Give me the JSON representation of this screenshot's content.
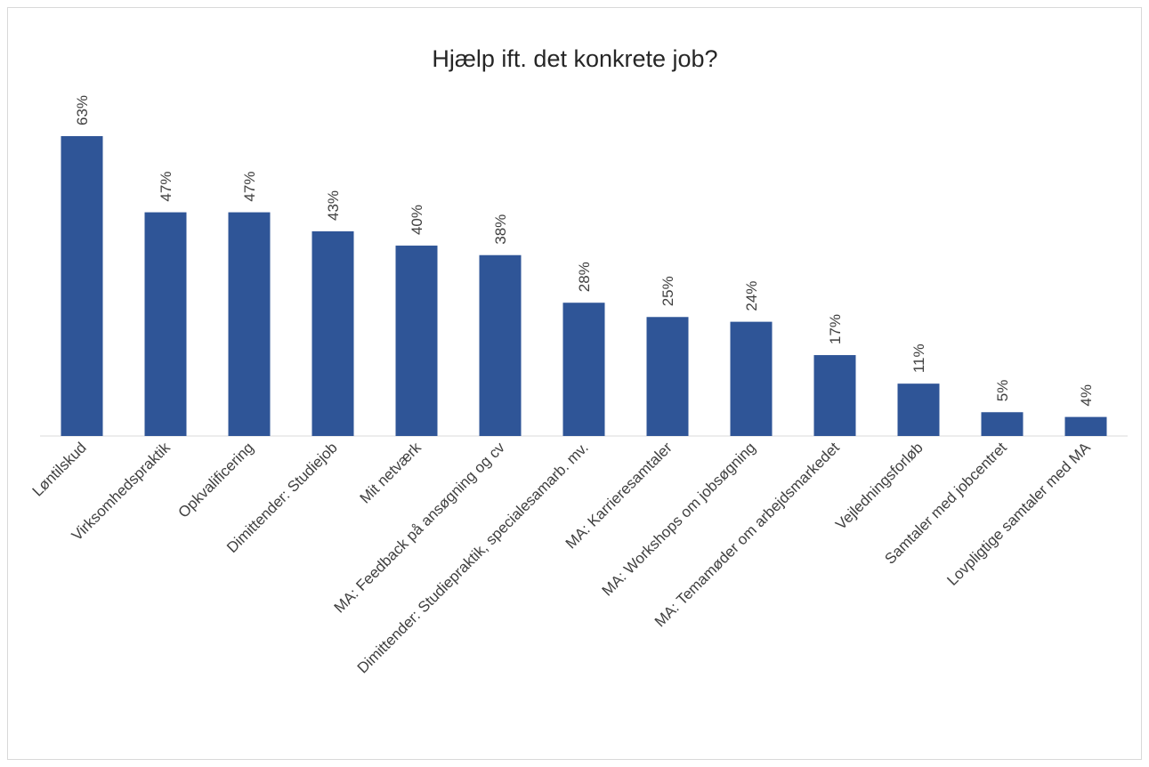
{
  "chart_data": {
    "type": "bar",
    "title": "Hjælp ift. det konkrete job?",
    "categories": [
      "Løntilskud",
      "Virksomhedspraktik",
      "Opkvalificering",
      "Dimittender: Studiejob",
      "Mit netværk",
      "MA: Feedback på ansøgning og cv",
      "Dimittender: Studiepraktik, specialesamarb. mv.",
      "MA: Karrieresamtaler",
      "MA: Workshops om jobsøgning",
      "MA: Temamøder om arbejdsmarkedet",
      "Vejledningsforløb",
      "Samtaler med jobcentret",
      "Lovpligtige samtaler med MA"
    ],
    "values": [
      63,
      47,
      47,
      43,
      40,
      38,
      28,
      25,
      24,
      17,
      11,
      5,
      4
    ],
    "value_labels": [
      "63%",
      "47%",
      "47%",
      "43%",
      "40%",
      "38%",
      "28%",
      "25%",
      "24%",
      "17%",
      "11%",
      "5%",
      "4%"
    ],
    "color": "#2f5597"
  }
}
